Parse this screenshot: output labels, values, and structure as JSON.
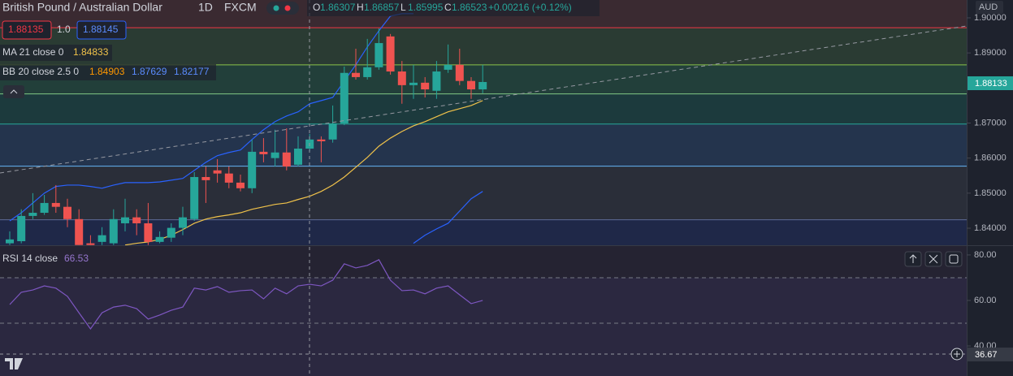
{
  "header": {
    "symbol": "British Pound / Australian Dollar",
    "interval": "1D",
    "exchange": "FXCM",
    "ohlc": [
      {
        "key": "O",
        "value": "1.86307"
      },
      {
        "key": "H",
        "value": "1.86857"
      },
      {
        "key": "L",
        "value": "1.85995"
      },
      {
        "key": "C",
        "value": "1.86523"
      }
    ],
    "change": "+0.00216 (+0.12%)",
    "sell": "1.88135",
    "quantity": "1.0",
    "buy": "1.88145",
    "currency": "AUD",
    "indicators": [
      {
        "name": "MA 21 close 0",
        "values": [
          "1.84833"
        ]
      },
      {
        "name": "BB 20 close 2.5 0",
        "values": [
          "1.84903",
          "1.87629",
          "1.82177"
        ]
      }
    ],
    "rsi": {
      "name": "RSI 14 close",
      "value": "66.53"
    },
    "last_price": "1.88133",
    "crosshair_value": "36.67"
  },
  "chart_data": [
    {
      "type": "candlestick",
      "up_color": "#26a69a",
      "down_color": "#ef5350",
      "open": [
        1.8357,
        1.8363,
        1.8435,
        1.8444,
        1.8472,
        1.8461,
        1.8426,
        1.8357,
        1.8361,
        1.8357,
        1.8414,
        1.8431,
        1.8414,
        1.8361,
        1.8373,
        1.8401,
        1.8426,
        1.8546,
        1.8565,
        1.8556,
        1.853,
        1.8514,
        1.8618,
        1.86,
        1.8616,
        1.8581,
        1.8627,
        1.8653,
        1.8653,
        1.8699,
        1.8843,
        1.8831,
        1.8859,
        1.8947,
        1.8847,
        1.8808,
        1.8815,
        1.8792,
        1.8852,
        1.8866,
        1.882,
        1.8796
      ],
      "high": [
        1.8391,
        1.8454,
        1.85,
        1.8495,
        1.8523,
        1.8484,
        1.8454,
        1.838,
        1.8403,
        1.8454,
        1.8484,
        1.8454,
        1.8472,
        1.8391,
        1.8414,
        1.8461,
        1.856,
        1.8576,
        1.8597,
        1.8576,
        1.8553,
        1.8653,
        1.8657,
        1.8681,
        1.8685,
        1.8662,
        1.8669,
        1.8662,
        1.875,
        1.8861,
        1.8912,
        1.894,
        1.897,
        1.8954,
        1.8877,
        1.8866,
        1.8831,
        1.8877,
        1.8924,
        1.8912,
        1.8831,
        1.8866
      ],
      "low": [
        1.8352,
        1.8357,
        1.8426,
        1.8438,
        1.8444,
        1.8403,
        1.8352,
        1.8352,
        1.8352,
        1.8352,
        1.8391,
        1.838,
        1.8352,
        1.8357,
        1.8361,
        1.838,
        1.8421,
        1.8472,
        1.853,
        1.8514,
        1.8505,
        1.85,
        1.8588,
        1.8576,
        1.8565,
        1.8576,
        1.862,
        1.8588,
        1.8644,
        1.8694,
        1.8824,
        1.8824,
        1.8852,
        1.8838,
        1.8755,
        1.8769,
        1.8773,
        1.8769,
        1.8843,
        1.8808,
        1.8769,
        1.8785
      ],
      "close": [
        1.8368,
        1.8435,
        1.8444,
        1.8472,
        1.8461,
        1.8426,
        1.8352,
        1.8352,
        1.838,
        1.8426,
        1.8431,
        1.8414,
        1.8361,
        1.8375,
        1.8401,
        1.8431,
        1.8546,
        1.8537,
        1.8556,
        1.853,
        1.8514,
        1.8618,
        1.8611,
        1.8616,
        1.8576,
        1.8627,
        1.8653,
        1.8648,
        1.8699,
        1.8843,
        1.8831,
        1.8859,
        1.8928,
        1.8847,
        1.8808,
        1.8815,
        1.8796,
        1.8847,
        1.8866,
        1.882,
        1.8796,
        1.8817
      ],
      "series": [
        {
          "color": "#f0c24a",
          "values": [
            null,
            null,
            null,
            null,
            null,
            null,
            null,
            null,
            null,
            null,
            1.8352,
            1.8357,
            1.8361,
            1.8368,
            1.838,
            1.8396,
            1.8414,
            1.8426,
            1.8433,
            1.8438,
            1.8444,
            1.8454,
            1.8461,
            1.8468,
            1.8472,
            1.8482,
            1.8491,
            1.8505,
            1.8523,
            1.8546,
            1.8574,
            1.8602,
            1.8634,
            1.8657,
            1.8676,
            1.8692,
            1.8704,
            1.8718,
            1.8732,
            1.8741,
            1.875,
            1.8764
          ]
        },
        {
          "color": "#2962ff",
          "values": [
            1.8421,
            1.8444,
            1.8472,
            1.85,
            1.8519,
            1.8523,
            1.8523,
            1.8519,
            1.8514,
            1.8523,
            1.853,
            1.853,
            1.853,
            1.8532,
            1.8537,
            1.8542,
            1.8565,
            1.8588,
            1.8607,
            1.8616,
            1.8623,
            1.8653,
            1.8681,
            1.8704,
            1.872,
            1.8732,
            1.8755,
            1.8764,
            1.8773,
            1.882,
            1.8866,
            1.8917,
            1.8963,
            1.9005,
            1.9012,
            1.9012,
            null,
            null,
            null,
            null,
            null,
            null
          ]
        },
        {
          "color": "#2962ff",
          "values": [
            null,
            null,
            null,
            null,
            null,
            null,
            null,
            null,
            null,
            null,
            null,
            null,
            null,
            null,
            null,
            null,
            null,
            null,
            null,
            null,
            null,
            null,
            null,
            null,
            null,
            null,
            null,
            null,
            null,
            null,
            null,
            null,
            null,
            null,
            null,
            1.8357,
            1.838,
            1.8398,
            1.8414,
            1.8449,
            1.8484,
            1.8505
          ]
        }
      ],
      "levels": [
        {
          "value": 1.8972,
          "color": "#f23645"
        },
        {
          "value": 1.8866,
          "color": "#8bc34a"
        },
        {
          "value": 1.8783,
          "color": "#81c784"
        },
        {
          "value": 1.8697,
          "color": "#26a69a"
        },
        {
          "value": 1.8577,
          "color": "#64b5f6"
        },
        {
          "value": 1.8424,
          "color": "#5d6b96"
        }
      ],
      "ylim": [
        1.83514,
        1.90509
      ],
      "yticks": [
        {
          "value": 1.9,
          "label": "1.90000"
        },
        {
          "value": 1.89,
          "label": "1.89000"
        },
        {
          "value": 1.87,
          "label": "1.87000"
        },
        {
          "value": 1.86,
          "label": "1.86000"
        },
        {
          "value": 1.85,
          "label": "1.85000"
        },
        {
          "value": 1.84,
          "label": "1.84000"
        }
      ]
    },
    {
      "type": "line",
      "color": "#7e57c2",
      "values": [
        58.2,
        63.6,
        64.6,
        66.4,
        65.4,
        61.8,
        54.6,
        47.5,
        54.6,
        57.1,
        57.9,
        56.4,
        51.8,
        53.6,
        55.7,
        57.1,
        65.4,
        64.6,
        66.1,
        63.6,
        64.3,
        64.6,
        60.7,
        65.4,
        62.9,
        66.4,
        67.1,
        66.4,
        68.9,
        76.1,
        74.3,
        75.4,
        77.9,
        68.9,
        64.3,
        64.6,
        62.9,
        65.4,
        66.4,
        62.5,
        58.6,
        60.0
      ],
      "levels": [
        70,
        50
      ],
      "ylim": [
        26.8,
        83.9
      ],
      "yticks": [
        {
          "value": 80,
          "label": "80.00"
        },
        {
          "value": 60,
          "label": "60.00"
        },
        {
          "value": 40,
          "label": "40.00"
        }
      ]
    }
  ]
}
